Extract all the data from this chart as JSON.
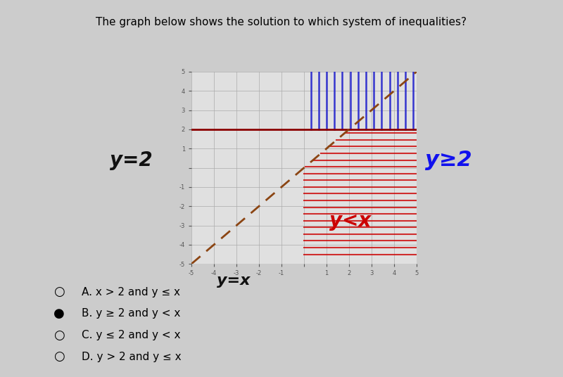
{
  "title": "The graph below shows the solution to which system of inequalities?",
  "title_fontsize": 11,
  "bg_color": "#cccccc",
  "plot_bg_color": "#e0e0e0",
  "graph_xlim": [
    -5,
    5
  ],
  "graph_ylim": [
    -5,
    5
  ],
  "annotation_y2_text": "y=2",
  "annotation_y2_color": "#111111",
  "annotation_yge2_text": "y≥2",
  "annotation_yge2_color": "#1111ee",
  "annotation_yx_text": "y=x",
  "annotation_yx_color": "#111111",
  "annotation_yltx_text": "y<x",
  "annotation_yltx_color": "#cc0000",
  "blue_hatch_color": "#2222cc",
  "red_hatch_color": "#cc0000",
  "line_y2_color": "#8B0000",
  "line_yx_color": "#8B4513",
  "choices": [
    {
      "label": "A.",
      "text": " x > 2 and y ≤ x",
      "selected": false
    },
    {
      "label": "B.",
      "text": " y ≥ 2 and y < x",
      "selected": true
    },
    {
      "label": "C.",
      "text": " y ≤ 2 and y < x",
      "selected": false
    },
    {
      "label": "D.",
      "text": " y > 2 and y ≤ x",
      "selected": false
    }
  ]
}
